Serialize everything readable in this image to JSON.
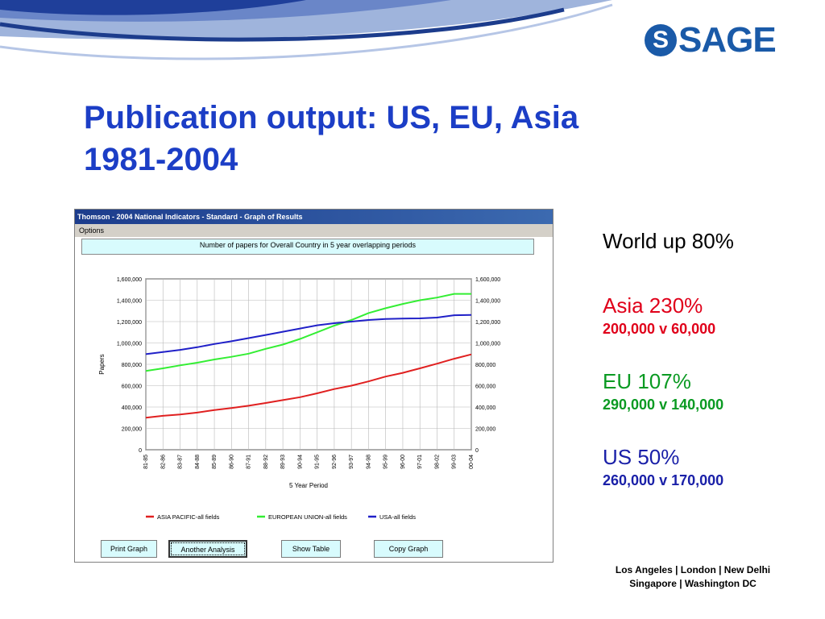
{
  "colors": {
    "title_blue": "#1c3ec6",
    "asia_red": "#e02020",
    "eu_green": "#33ee33",
    "us_blue": "#2020c8",
    "brand": "#1a5aa8"
  },
  "logo": {
    "text": "SAGE",
    "mark": "S"
  },
  "title": {
    "line1": "Publication output:  US, EU, Asia",
    "line2": "1981-2004"
  },
  "window": {
    "title": "Thomson - 2004 National Indicators - Standard - Graph of Results",
    "menu_item": "Options"
  },
  "chart_data": {
    "type": "line",
    "title": "Number of papers for Overall Country in 5 year overlapping periods",
    "xlabel": "5 Year Period",
    "ylabel": "Papers",
    "ylim": [
      0,
      1600000
    ],
    "yticks": [
      0,
      200000,
      400000,
      600000,
      800000,
      1000000,
      1200000,
      1400000,
      1600000
    ],
    "ytick_labels": [
      "0",
      "200,000",
      "400,000",
      "600,000",
      "800,000",
      "1,000,000",
      "1,200,000",
      "1,400,000",
      "1,600,000"
    ],
    "grid": true,
    "legend_position": "bottom",
    "categories": [
      "81-85",
      "82-86",
      "83-87",
      "84-88",
      "85-89",
      "86-90",
      "87-91",
      "88-92",
      "89-93",
      "90-94",
      "91-95",
      "92-96",
      "93-97",
      "94-98",
      "95-99",
      "96-00",
      "97-01",
      "98-02",
      "99-03",
      "00-04"
    ],
    "series": [
      {
        "name": "ASIA PACIFIC-all fields",
        "color": "#e02020",
        "values": [
          300000,
          318000,
          330000,
          348000,
          372000,
          390000,
          412000,
          438000,
          465000,
          492000,
          528000,
          568000,
          600000,
          640000,
          685000,
          720000,
          762000,
          806000,
          852000,
          893000
        ]
      },
      {
        "name": "EUROPEAN UNION-all fields",
        "color": "#33ee33",
        "values": [
          738000,
          762000,
          790000,
          815000,
          845000,
          870000,
          900000,
          945000,
          985000,
          1038000,
          1100000,
          1162000,
          1215000,
          1280000,
          1325000,
          1365000,
          1400000,
          1425000,
          1460000,
          1460000
        ]
      },
      {
        "name": "USA-all fields",
        "color": "#2020c8",
        "values": [
          895000,
          915000,
          935000,
          960000,
          990000,
          1016000,
          1045000,
          1075000,
          1105000,
          1135000,
          1165000,
          1185000,
          1200000,
          1215000,
          1225000,
          1228000,
          1230000,
          1238000,
          1260000,
          1263000
        ]
      }
    ]
  },
  "buttons": [
    {
      "label": "Print Graph"
    },
    {
      "label": "Another Analysis"
    },
    {
      "label": "Show Table"
    },
    {
      "label": "Copy Graph"
    }
  ],
  "stats": {
    "world": "World up 80%",
    "asia_head": "Asia 230%",
    "asia_detail": "200,000  v  60,000",
    "eu_head": "EU 107%",
    "eu_detail": "290,000  v  140,000",
    "us_head": "US  50%",
    "us_detail": "260,000  v  170,000"
  },
  "footer": {
    "line1": "Los Angeles | London | New Delhi",
    "line2": "Singapore | Washington DC"
  }
}
